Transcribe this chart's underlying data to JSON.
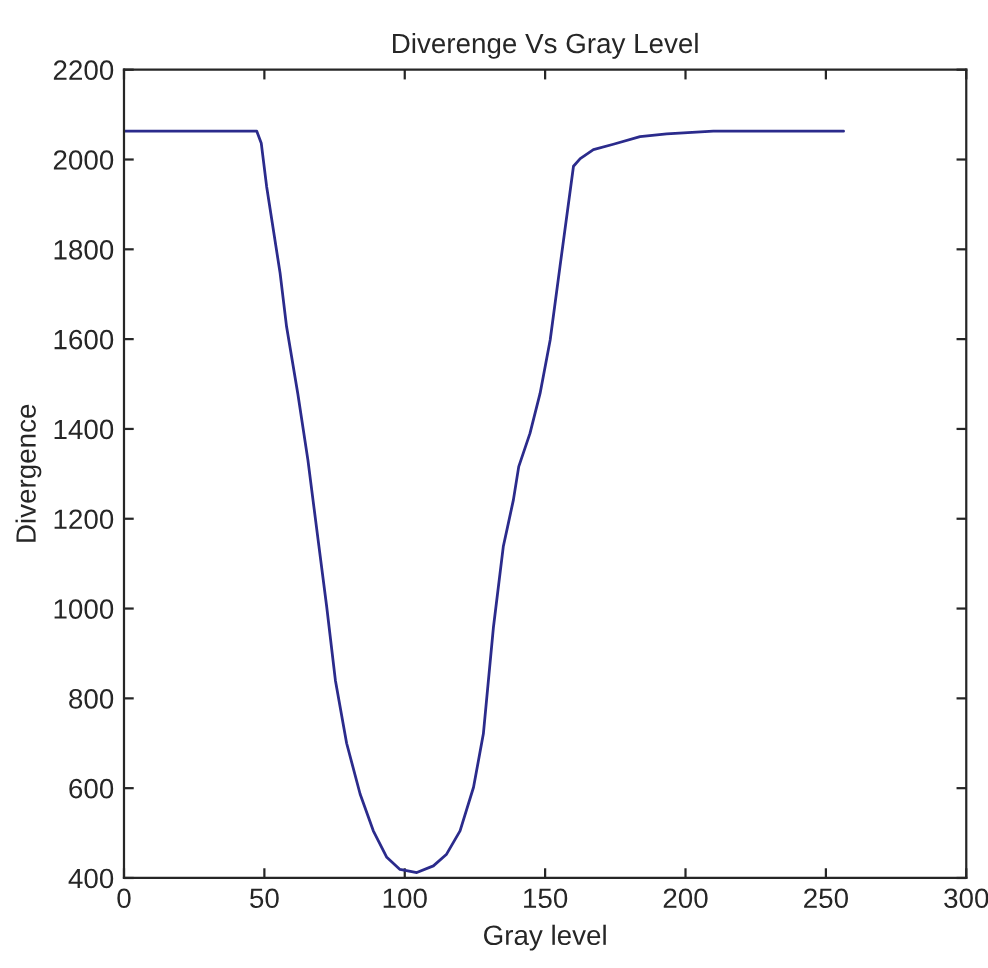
{
  "chart_data": {
    "type": "line",
    "title": "Diverenge Vs Gray Level",
    "xlabel": "Gray level",
    "ylabel": "Divergence",
    "x": [
      0,
      47.3,
      48.9,
      50.8,
      55.6,
      57.9,
      61.9,
      65.5,
      69.3,
      72.2,
      75.3,
      79.3,
      84.1,
      88.8,
      93.6,
      98.3,
      104.3,
      110.2,
      114.9,
      119.7,
      124.5,
      128,
      131.6,
      135.1,
      138.7,
      140.6,
      144.6,
      148.2,
      151.8,
      155.3,
      160.1,
      162.5,
      167.2,
      174.3,
      183.8,
      193.3,
      209.9,
      256.3
    ],
    "series": [
      {
        "color": "#2b2b8c",
        "values": [
          2063,
          2063,
          2036,
          1940,
          1747,
          1628,
          1479,
          1331,
          1145,
          1004,
          840,
          700,
          587,
          505,
          446,
          419,
          412,
          427,
          453,
          505,
          602,
          721,
          959,
          1138,
          1242,
          1316,
          1390,
          1479,
          1598,
          1762,
          1985,
          2002,
          2022,
          2034,
          2051,
          2057,
          2063,
          2063
        ]
      }
    ],
    "xlim": [
      0,
      300
    ],
    "xticks": [
      0,
      50,
      100,
      150,
      200,
      250,
      300
    ],
    "ylim": [
      400,
      2200
    ],
    "yticks": [
      400,
      600,
      800,
      1000,
      1200,
      1400,
      1600,
      1800,
      2000,
      2200
    ],
    "grid": false,
    "legend": false,
    "marker": "none",
    "line_style": "solid"
  }
}
